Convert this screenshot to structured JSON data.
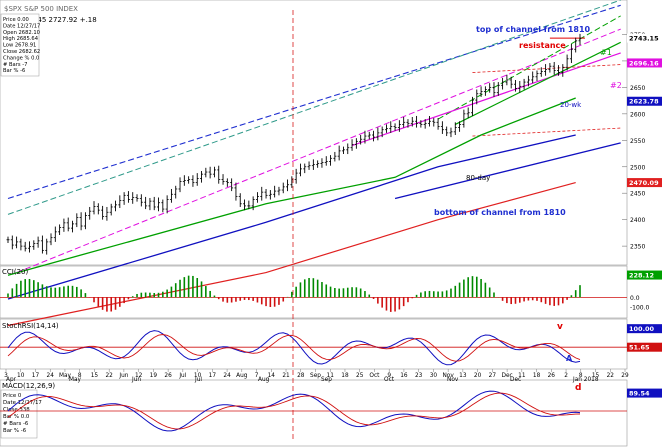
{
  "header": {
    "symbol_line": "$SPX S&P 500 INDEX",
    "quote_line": ".33 2743.45 2727.92 +.18"
  },
  "info_main": [
    "Price 0.00",
    "Date 12/27/17",
    "Open 2682.10",
    "High 2685.64",
    "Low 2678.91",
    "Close 2682.62",
    "Change % 0.0",
    "# Bars -7",
    "Bar % -6"
  ],
  "info_macd": [
    "Price 0",
    "Date 12/27/17",
    "Close 338",
    "Bar % 0.0",
    "# Bars -6",
    "Bar % -6"
  ],
  "panel_labels": {
    "cci": "CCI(20)",
    "stoch": "StochRSI(14,14)",
    "macd": "MACD(12,26,9)"
  },
  "annotations": {
    "top_channel": "top of channel from 1810",
    "resistance": "resistance",
    "bottom_channel": "bottom of channel from 1810",
    "ma80": "80-day",
    "ma20": "20-wk",
    "line1": "#1",
    "line2": "#2",
    "cci_d": "d",
    "stoch_v": "v",
    "stoch_A": "A",
    "macd_d": "d"
  },
  "colors": {
    "channel_blue": "#1f2fd0",
    "channel_teal": "#2f9a8a",
    "magenta": "#e010e0",
    "ma_green": "#00a000",
    "ma_navy": "#1010c0",
    "ma_red": "#e02020",
    "price_black": "#000000",
    "hist_green": "#008a00",
    "hist_red": "#d01010",
    "vline_red": "#d81b1b",
    "label_red": "#e00000"
  },
  "chart_data": {
    "type": "line",
    "x_tick_labels": [
      "3",
      "10",
      "17",
      "24",
      "May",
      "8",
      "15",
      "22",
      "Jun",
      "12",
      "19",
      "26",
      "Jul",
      "10",
      "17",
      "24",
      "Aug",
      "7",
      "14",
      "21",
      "28",
      "Sep",
      "11",
      "18",
      "25",
      "Oct",
      "9",
      "16",
      "23",
      "30",
      "Nov",
      "13",
      "20",
      "27",
      "Dec",
      "11",
      "18",
      "26",
      "2",
      "8",
      "15",
      "22",
      "29"
    ],
    "month_labels": [
      "Apr",
      "May",
      "Jun",
      "Jul",
      "Aug",
      "Sep",
      "Oct",
      "Nov",
      "Dec",
      "Jan 2018"
    ],
    "price": {
      "ylim": [
        2320,
        2800
      ],
      "y_ticks": [
        2350,
        2400,
        2450,
        2500,
        2550,
        2600,
        2650,
        2700,
        2750
      ],
      "marker_values": [
        {
          "value": 2743.15,
          "color": "#000000"
        },
        {
          "value": 2696.16,
          "color": "#e010e0"
        },
        {
          "value": 2623.78,
          "color": "#1010c0"
        },
        {
          "value": 2470.09,
          "color": "#e02020"
        }
      ],
      "series_close": [
        2362,
        2352,
        2358,
        2350,
        2346,
        2349,
        2355,
        2360,
        2342,
        2358,
        2366,
        2377,
        2385,
        2394,
        2384,
        2392,
        2404,
        2388,
        2408,
        2416,
        2425,
        2418,
        2406,
        2414,
        2424,
        2428,
        2436,
        2446,
        2438,
        2442,
        2440,
        2433,
        2426,
        2435,
        2424,
        2432,
        2420,
        2438,
        2448,
        2458,
        2472,
        2474,
        2476,
        2470,
        2478,
        2486,
        2490,
        2486,
        2494,
        2476,
        2472,
        2470,
        2460,
        2444,
        2430,
        2426,
        2426,
        2438,
        2444,
        2452,
        2446,
        2448,
        2454,
        2456,
        2462,
        2466,
        2476,
        2488,
        2496,
        2500,
        2502,
        2504,
        2506,
        2508,
        2510,
        2516,
        2520,
        2530,
        2532,
        2536,
        2542,
        2548,
        2552,
        2558,
        2560,
        2556,
        2564,
        2570,
        2572,
        2576,
        2574,
        2580,
        2584,
        2582,
        2586,
        2582,
        2580,
        2582,
        2586,
        2584,
        2576,
        2570,
        2564,
        2566,
        2574,
        2580,
        2600,
        2602,
        2626,
        2638,
        2642,
        2646,
        2650,
        2640,
        2654,
        2660,
        2664,
        2656,
        2648,
        2652,
        2660,
        2664,
        2670,
        2676,
        2680,
        2684,
        2690,
        2682,
        2678,
        2688,
        2704,
        2722,
        2738,
        2743
      ],
      "resistance_level": 2743,
      "ma_80day": [
        [
          0,
          2295
        ],
        [
          60,
          2430
        ],
        [
          90,
          2480
        ],
        [
          110,
          2560
        ],
        [
          132,
          2630
        ]
      ],
      "ma_20wk": [
        [
          0,
          2250
        ],
        [
          60,
          2395
        ],
        [
          100,
          2500
        ],
        [
          132,
          2560
        ]
      ],
      "ma_red": [
        [
          0,
          2200
        ],
        [
          60,
          2300
        ],
        [
          100,
          2400
        ],
        [
          132,
          2470
        ]
      ]
    },
    "cci": {
      "ylim": [
        -200,
        300
      ],
      "y_ticks": [
        0,
        -100
      ],
      "last_value": 228.12
    },
    "stochrsi": {
      "ylim": [
        0,
        120
      ],
      "upper_value": 100.0,
      "lower_value": 51.65
    },
    "macd": {
      "last_value": 89.54
    }
  }
}
